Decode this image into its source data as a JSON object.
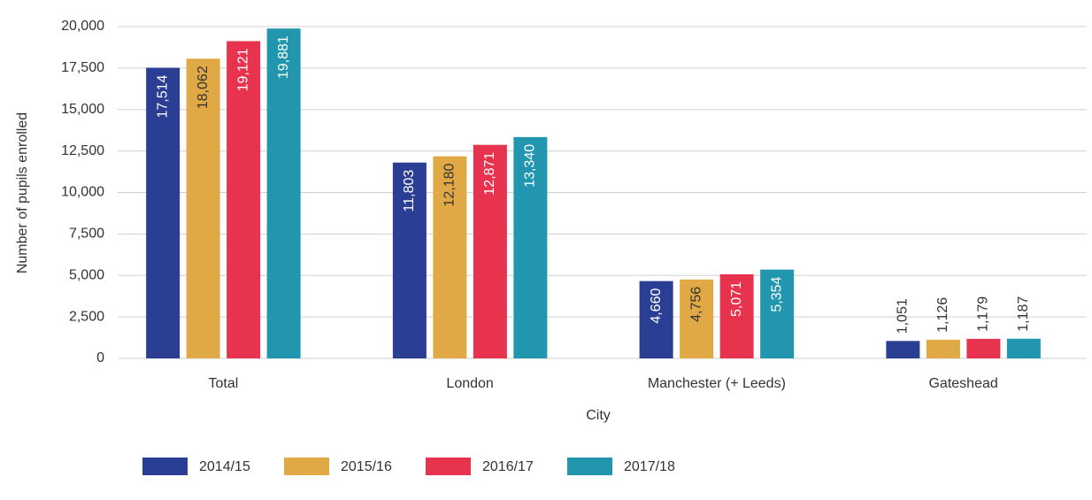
{
  "chart_data": {
    "type": "bar",
    "x_label": "City",
    "y_label": "Number of pupils enrolled",
    "categories": [
      "Total",
      "London",
      "Manchester (+ Leeds)",
      "Gateshead"
    ],
    "series": [
      {
        "name": "2014/15",
        "color": "#2a3f93",
        "values": [
          17514,
          11803,
          4660,
          1051
        ],
        "value_labels": [
          "17,514",
          "11,803",
          "4,660",
          "1,051"
        ]
      },
      {
        "name": "2015/16",
        "color": "#e0a946",
        "values": [
          18062,
          12180,
          4756,
          1126
        ],
        "value_labels": [
          "18,062",
          "12,180",
          "4,756",
          "1,126"
        ]
      },
      {
        "name": "2016/17",
        "color": "#e8334f",
        "values": [
          19121,
          12871,
          5071,
          1179
        ],
        "value_labels": [
          "19,121",
          "12,871",
          "5,071",
          "1,179"
        ]
      },
      {
        "name": "2017/18",
        "color": "#2296ae",
        "values": [
          19881,
          13340,
          5354,
          1187
        ],
        "value_labels": [
          "19,881",
          "13,340",
          "5,354",
          "1,187"
        ]
      }
    ],
    "ylim": [
      0,
      20000
    ],
    "yticks": [
      0,
      {
        "value": 2500,
        "label": "2,500"
      },
      {
        "value": 5000,
        "label": "5,000"
      },
      {
        "value": 7500,
        "label": "7,500"
      },
      {
        "value": 10000,
        "label": "10,000"
      },
      {
        "value": 12500,
        "label": "12,500"
      },
      {
        "value": 15000,
        "label": "15,000"
      },
      {
        "value": 17500,
        "label": "17,500"
      },
      {
        "value": 20000,
        "label": "20,000"
      }
    ],
    "grid": true,
    "legend": "bottom"
  }
}
